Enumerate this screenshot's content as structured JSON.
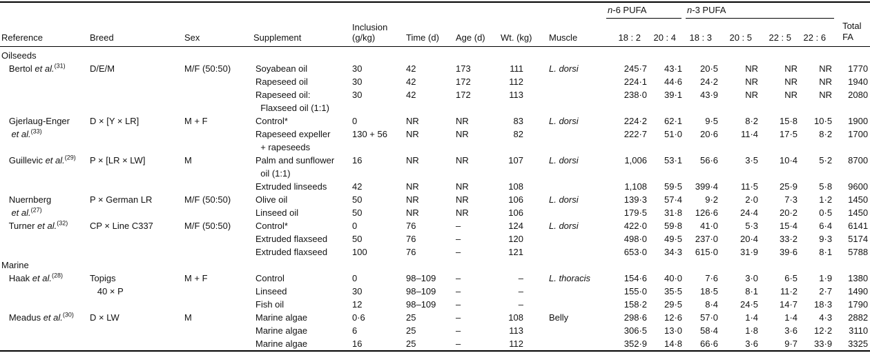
{
  "table": {
    "headers": {
      "reference": "Reference",
      "breed": "Breed",
      "sex": "Sex",
      "supplement": "Supplement",
      "inclusion_l1": "Inclusion",
      "inclusion_l2": "(g/kg)",
      "time": "Time (d)",
      "age": "Age (d)",
      "wt": "Wt. (kg)",
      "muscle": "Muscle",
      "group_n6": "*n*-6 PUFA",
      "group_n3": "*n*-3 PUFA",
      "sub": [
        "18 : 2",
        "20 : 4",
        "18 : 3",
        "20 : 5",
        "22 : 5",
        "22 : 6"
      ],
      "total_l1": "Total",
      "total_l2": "FA"
    },
    "col_keys": [
      "reference",
      "breed",
      "sex",
      "supplement",
      "inclusion",
      "time",
      "age",
      "wt",
      "muscle",
      "18-2",
      "20-4",
      "18-3",
      "20-5",
      "22-5",
      "22-6",
      "total-fa"
    ],
    "rows": [
      {
        "type": "section",
        "cells": [
          "Oilseeds",
          "",
          "",
          "",
          "",
          "",
          "",
          "",
          "",
          "",
          "",
          "",
          "",
          "",
          "",
          ""
        ]
      },
      {
        "type": "data",
        "cells": [
          "   Bertol *et al.*^{(31)}",
          "D/E/M",
          "M/F (50:50)",
          "Soyabean oil",
          "30",
          "42",
          "173",
          "111",
          "*L. dorsi*",
          "245·7",
          "43·1",
          "20·5",
          "NR",
          "NR",
          "NR",
          "1770"
        ]
      },
      {
        "type": "data",
        "cells": [
          "",
          "",
          "",
          "Rapeseed oil",
          "30",
          "42",
          "172",
          "112",
          "",
          "224·1",
          "44·6",
          "24·2",
          "NR",
          "NR",
          "NR",
          "1940"
        ]
      },
      {
        "type": "data",
        "cells": [
          "",
          "",
          "",
          "Rapeseed oil:",
          "30",
          "42",
          "172",
          "113",
          "",
          "238·0",
          "39·1",
          "43·9",
          "NR",
          "NR",
          "NR",
          "2080"
        ]
      },
      {
        "type": "data",
        "cells": [
          "",
          "",
          "",
          "  Flaxseed oil (1:1)",
          "",
          "",
          "",
          "",
          "",
          "",
          "",
          "",
          "",
          "",
          "",
          ""
        ]
      },
      {
        "type": "data",
        "cells": [
          "   Gjerlaug-Enger",
          "D × [Y × LR]",
          "M + F",
          "Control*",
          "0",
          "NR",
          "NR",
          "83",
          "*L. dorsi*",
          "224·2",
          "62·1",
          "9·5",
          "8·2",
          "15·8",
          "10·5",
          "1900"
        ]
      },
      {
        "type": "data",
        "cells": [
          "    *et al.*^{(33)}",
          "",
          "",
          "Rapeseed expeller",
          "130 + 56",
          "NR",
          "NR",
          "82",
          "",
          "222·7",
          "51·0",
          "20·6",
          "11·4",
          "17·5",
          "8·2",
          "1700"
        ]
      },
      {
        "type": "data",
        "cells": [
          "",
          "",
          "",
          "  + rapeseeds",
          "",
          "",
          "",
          "",
          "",
          "",
          "",
          "",
          "",
          "",
          "",
          ""
        ]
      },
      {
        "type": "data",
        "cells": [
          "   Guillevic *et al.*^{(29)}",
          "P × [LR × LW]",
          "M",
          "Palm and sunflower",
          "16",
          "NR",
          "NR",
          "107",
          "*L. dorsi*",
          "1,006",
          "53·1",
          "56·6",
          "3·5",
          "10·4",
          "5·2",
          "8700"
        ]
      },
      {
        "type": "data",
        "cells": [
          "",
          "",
          "",
          "  oil (1:1)",
          "",
          "",
          "",
          "",
          "",
          "",
          "",
          "",
          "",
          "",
          "",
          ""
        ]
      },
      {
        "type": "data",
        "cells": [
          "",
          "",
          "",
          "Extruded linseeds",
          "42",
          "NR",
          "NR",
          "108",
          "",
          "1,108",
          "59·5",
          "399·4",
          "11·5",
          "25·9",
          "5·8",
          "9600"
        ]
      },
      {
        "type": "data",
        "cells": [
          "   Nuernberg",
          "P × German LR",
          "M/F (50:50)",
          "Olive oil",
          "50",
          "NR",
          "NR",
          "106",
          "*L. dorsi*",
          "139·3",
          "57·4",
          "9·2",
          "2·0",
          "7·3",
          "1·2",
          "1450"
        ]
      },
      {
        "type": "data",
        "cells": [
          "    *et al.*^{(27)}",
          "",
          "",
          "Linseed oil",
          "50",
          "NR",
          "NR",
          "106",
          "",
          "179·5",
          "31·8",
          "126·6",
          "24·4",
          "20·2",
          "0·5",
          "1450"
        ]
      },
      {
        "type": "data",
        "cells": [
          "   Turner *et al.*^{(32)}",
          "CP × Line C337",
          "M/F (50:50)",
          "Control*",
          "0",
          "76",
          "–",
          "124",
          "*L. dorsi*",
          "422·0",
          "59·8",
          "41·0",
          "5·3",
          "15·4",
          "6·4",
          "6141"
        ]
      },
      {
        "type": "data",
        "cells": [
          "",
          "",
          "",
          "Extruded flaxseed",
          "50",
          "76",
          "–",
          "120",
          "",
          "498·0",
          "49·5",
          "237·0",
          "20·4",
          "33·2",
          "9·3",
          "5174"
        ]
      },
      {
        "type": "data",
        "cells": [
          "",
          "",
          "",
          "Extruded flaxseed",
          "100",
          "76",
          "–",
          "121",
          "",
          "653·0",
          "34·3",
          "615·0",
          "31·9",
          "39·6",
          "8·1",
          "5788"
        ]
      },
      {
        "type": "section",
        "cells": [
          "Marine",
          "",
          "",
          "",
          "",
          "",
          "",
          "",
          "",
          "",
          "",
          "",
          "",
          "",
          "",
          ""
        ]
      },
      {
        "type": "data",
        "cells": [
          "   Haak *et al.*^{(28)}",
          "Topigs",
          "M + F",
          "Control",
          "0",
          "98–109",
          "–",
          "–",
          "*L. thoracis*",
          "154·6",
          "40·0",
          "7·6",
          "3·0",
          "6·5",
          "1·9",
          "1380"
        ]
      },
      {
        "type": "data",
        "cells": [
          "",
          "   40 × P",
          "",
          "Linseed",
          "30",
          "98–109",
          "–",
          "–",
          "",
          "155·0",
          "35·5",
          "18·5",
          "8·1",
          "11·2",
          "2·7",
          "1490"
        ]
      },
      {
        "type": "data",
        "cells": [
          "",
          "",
          "",
          "Fish oil",
          "12",
          "98–109",
          "–",
          "–",
          "",
          "158·2",
          "29·5",
          "8·4",
          "24·5",
          "14·7",
          "18·3",
          "1790"
        ]
      },
      {
        "type": "data",
        "cells": [
          "   Meadus *et al.*^{(30)}",
          "D × LW",
          "M",
          "Marine algae",
          "0·6",
          "25",
          "–",
          "108",
          "Belly",
          "298·6",
          "12·6",
          "57·0",
          "1·4",
          "1·4",
          "4·3",
          "2882"
        ]
      },
      {
        "type": "data",
        "cells": [
          "",
          "",
          "",
          "Marine algae",
          "6",
          "25",
          "–",
          "113",
          "",
          "306·5",
          "13·0",
          "58·4",
          "1·8",
          "3·6",
          "12·2",
          "3110"
        ]
      },
      {
        "type": "data",
        "cells": [
          "",
          "",
          "",
          "Marine algae",
          "16",
          "25",
          "–",
          "112",
          "",
          "352·9",
          "14·8",
          "66·6",
          "3·6",
          "9·7",
          "33·9",
          "3325"
        ]
      }
    ]
  }
}
